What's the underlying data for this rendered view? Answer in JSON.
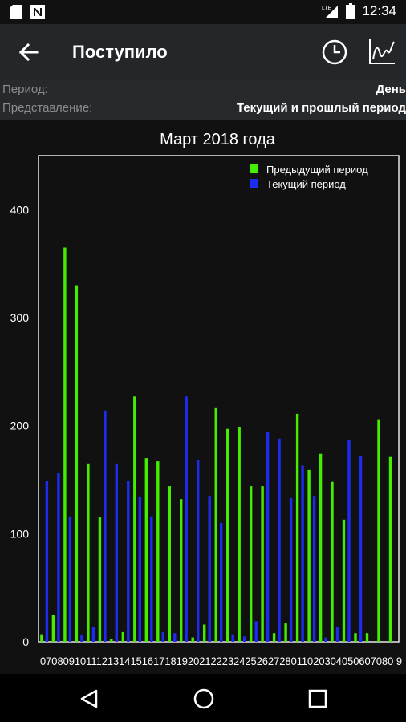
{
  "status_bar": {
    "time": "12:34",
    "network": "LTE"
  },
  "app_bar": {
    "title": "Поступило"
  },
  "params": {
    "period_label": "Период:",
    "period_value": "День",
    "view_label": "Представление:",
    "view_value": "Текущий и прошлый период"
  },
  "colors": {
    "previous": "#44ee00",
    "current": "#1c2cf0",
    "appbar": "#23272a"
  },
  "chart_data": {
    "type": "bar",
    "title": "Март 2018 года",
    "legend_position": "top-right",
    "ylim": [
      0,
      450
    ],
    "yticks": [
      0,
      100,
      200,
      300,
      400
    ],
    "categories": [
      "07",
      "08",
      "09",
      "10",
      "11",
      "12",
      "13",
      "14",
      "15",
      "16",
      "17",
      "18",
      "19",
      "20",
      "21",
      "22",
      "23",
      "24",
      "25",
      "26",
      "27",
      "28",
      "01",
      "02",
      "03",
      "04",
      "05",
      "06",
      "07",
      "08",
      "09"
    ],
    "x_tick_text": "07080910111213141516171819202122232425262728011020304050607080 9",
    "series": [
      {
        "name": "Предыдущий период",
        "color": "#44ee00",
        "values": [
          7,
          25,
          365,
          330,
          165,
          115,
          3,
          9,
          227,
          170,
          167,
          144,
          132,
          4,
          16,
          217,
          197,
          199,
          144,
          144,
          8,
          17,
          211,
          159,
          174,
          148,
          113,
          8,
          8,
          206,
          171
        ]
      },
      {
        "name": "Текущий период",
        "color": "#1c2cf0",
        "values": [
          149,
          156,
          116,
          6,
          14,
          214,
          165,
          149,
          134,
          116,
          9,
          8,
          227,
          168,
          135,
          110,
          7,
          5,
          19,
          194,
          188,
          133,
          163,
          135,
          4,
          14,
          187,
          172,
          0,
          0,
          0
        ]
      }
    ]
  }
}
